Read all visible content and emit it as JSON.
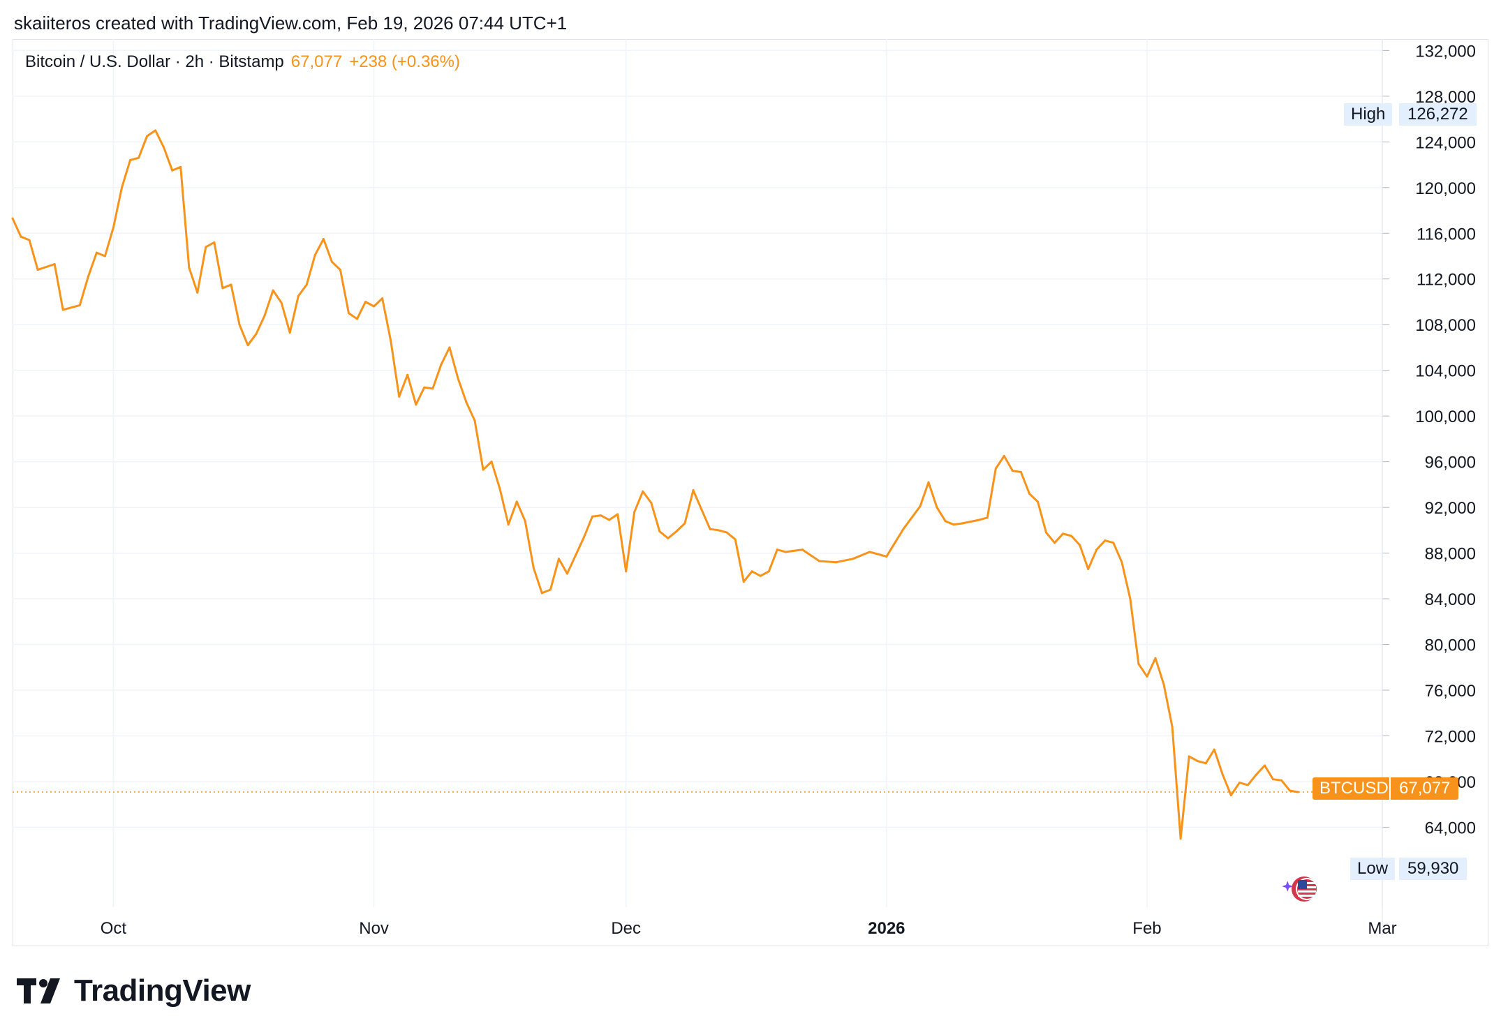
{
  "attribution": "skaiiteros created with TradingView.com, Feb 19, 2026 07:44 UTC+1",
  "legend": {
    "symbol": "Bitcoin / U.S. Dollar · 2h · Bitstamp",
    "price": "67,077",
    "change": "+238 (+0.36%)"
  },
  "markers": {
    "high_label": "High",
    "high_value": "126,272",
    "low_label": "Low",
    "low_value": "59,930",
    "price_label": "BTCUSD",
    "price_value": "67,077"
  },
  "brand": {
    "name": "TradingView"
  },
  "icons": {
    "logo": "tradingview-logo-icon",
    "badge": "us-flag-sparkle-icon"
  },
  "colors": {
    "series": "#f7931a",
    "grid": "#f0f3fa",
    "axis_text": "#131722",
    "tag_bg": "#e3effd"
  },
  "chart_data": {
    "type": "line",
    "title": "Bitcoin / U.S. Dollar · 2h · Bitstamp",
    "series": [
      {
        "name": "BTCUSD",
        "x": [
          "2025-09-19",
          "2025-09-20",
          "2025-09-21",
          "2025-09-22",
          "2025-09-24",
          "2025-09-25",
          "2025-09-26",
          "2025-09-27",
          "2025-09-28",
          "2025-09-29",
          "2025-09-30",
          "2025-10-01",
          "2025-10-02",
          "2025-10-03",
          "2025-10-04",
          "2025-10-05",
          "2025-10-06",
          "2025-10-07",
          "2025-10-08",
          "2025-10-09",
          "2025-10-10",
          "2025-10-11",
          "2025-10-12",
          "2025-10-13",
          "2025-10-14",
          "2025-10-15",
          "2025-10-16",
          "2025-10-17",
          "2025-10-18",
          "2025-10-19",
          "2025-10-20",
          "2025-10-21",
          "2025-10-22",
          "2025-10-23",
          "2025-10-24",
          "2025-10-25",
          "2025-10-26",
          "2025-10-27",
          "2025-10-28",
          "2025-10-29",
          "2025-10-30",
          "2025-10-31",
          "2025-11-01",
          "2025-11-02",
          "2025-11-03",
          "2025-11-04",
          "2025-11-05",
          "2025-11-06",
          "2025-11-07",
          "2025-11-08",
          "2025-11-09",
          "2025-11-10",
          "2025-11-11",
          "2025-11-12",
          "2025-11-13",
          "2025-11-14",
          "2025-11-15",
          "2025-11-16",
          "2025-11-17",
          "2025-11-18",
          "2025-11-19",
          "2025-11-20",
          "2025-11-21",
          "2025-11-22",
          "2025-11-23",
          "2025-11-24",
          "2025-11-25",
          "2025-11-26",
          "2025-11-27",
          "2025-11-28",
          "2025-11-29",
          "2025-11-30",
          "2025-12-01",
          "2025-12-02",
          "2025-12-03",
          "2025-12-04",
          "2025-12-05",
          "2025-12-06",
          "2025-12-07",
          "2025-12-08",
          "2025-12-09",
          "2025-12-10",
          "2025-12-11",
          "2025-12-12",
          "2025-12-13",
          "2025-12-14",
          "2025-12-15",
          "2025-12-16",
          "2025-12-17",
          "2025-12-18",
          "2025-12-19",
          "2025-12-20",
          "2025-12-22",
          "2025-12-24",
          "2025-12-26",
          "2025-12-28",
          "2025-12-30",
          "2026-01-01",
          "2026-01-03",
          "2026-01-05",
          "2026-01-06",
          "2026-01-07",
          "2026-01-08",
          "2026-01-09",
          "2026-01-10",
          "2026-01-12",
          "2026-01-13",
          "2026-01-14",
          "2026-01-15",
          "2026-01-16",
          "2026-01-17",
          "2026-01-18",
          "2026-01-19",
          "2026-01-20",
          "2026-01-21",
          "2026-01-22",
          "2026-01-23",
          "2026-01-24",
          "2026-01-25",
          "2026-01-26",
          "2026-01-27",
          "2026-01-28",
          "2026-01-29",
          "2026-01-30",
          "2026-01-31",
          "2026-02-01",
          "2026-02-02",
          "2026-02-03",
          "2026-02-04",
          "2026-02-05",
          "2026-02-06",
          "2026-02-07",
          "2026-02-08",
          "2026-02-09",
          "2026-02-10",
          "2026-02-11",
          "2026-02-12",
          "2026-02-13",
          "2026-02-14",
          "2026-02-15",
          "2026-02-16",
          "2026-02-17",
          "2026-02-18",
          "2026-02-19"
        ],
        "y": [
          117300,
          115700,
          115400,
          112800,
          113300,
          109300,
          109500,
          109700,
          112200,
          114300,
          114000,
          116500,
          120000,
          122400,
          122600,
          124500,
          125000,
          123500,
          121500,
          121800,
          113000,
          110800,
          114800,
          115200,
          111200,
          111500,
          108000,
          106200,
          107200,
          108800,
          111000,
          109900,
          107300,
          110500,
          111500,
          114100,
          115500,
          113500,
          112800,
          109000,
          108500,
          110000,
          109600,
          110300,
          106600,
          101700,
          103600,
          101000,
          102500,
          102400,
          104500,
          106000,
          103300,
          101200,
          99600,
          95300,
          96000,
          93600,
          90500,
          92500,
          90800,
          86700,
          84500,
          84800,
          87500,
          86200,
          87800,
          89400,
          91200,
          91300,
          90900,
          91400,
          86400,
          91600,
          93400,
          92400,
          89900,
          89300,
          89900,
          90600,
          93500,
          91800,
          90100,
          90000,
          89800,
          89200,
          85500,
          86400,
          86000,
          86400,
          88300,
          88100,
          88300,
          87300,
          87200,
          87500,
          88100,
          87700,
          90100,
          92100,
          94200,
          92000,
          90800,
          90500,
          90600,
          90900,
          91100,
          95400,
          96500,
          95200,
          95100,
          93200,
          92500,
          89800,
          88900,
          89700,
          89500,
          88700,
          86600,
          88300,
          89100,
          88900,
          87200,
          84000,
          78300,
          77200,
          78800,
          76500,
          72800,
          63000,
          70200,
          69800,
          69600,
          70800,
          68600,
          66800,
          67900,
          67700,
          68600,
          69400,
          68200,
          68100,
          67200,
          67077
        ]
      }
    ],
    "x_ticks": [
      "Oct",
      "Nov",
      "Dec",
      "2026",
      "Feb",
      "Mar"
    ],
    "y_ticks": [
      "64,000",
      "68,000",
      "72,000",
      "76,000",
      "80,000",
      "84,000",
      "88,000",
      "92,000",
      "96,000",
      "100,000",
      "104,000",
      "108,000",
      "112,000",
      "116,000",
      "120,000",
      "124,000",
      "128,000",
      "132,000"
    ],
    "xlim": [
      "2025-09-19",
      "2026-03-01"
    ],
    "ylim": [
      57000,
      133000
    ],
    "high": 126272,
    "low": 59930,
    "last": 67077,
    "grid": true,
    "legend": "top-left",
    "y_axis_position": "right"
  }
}
